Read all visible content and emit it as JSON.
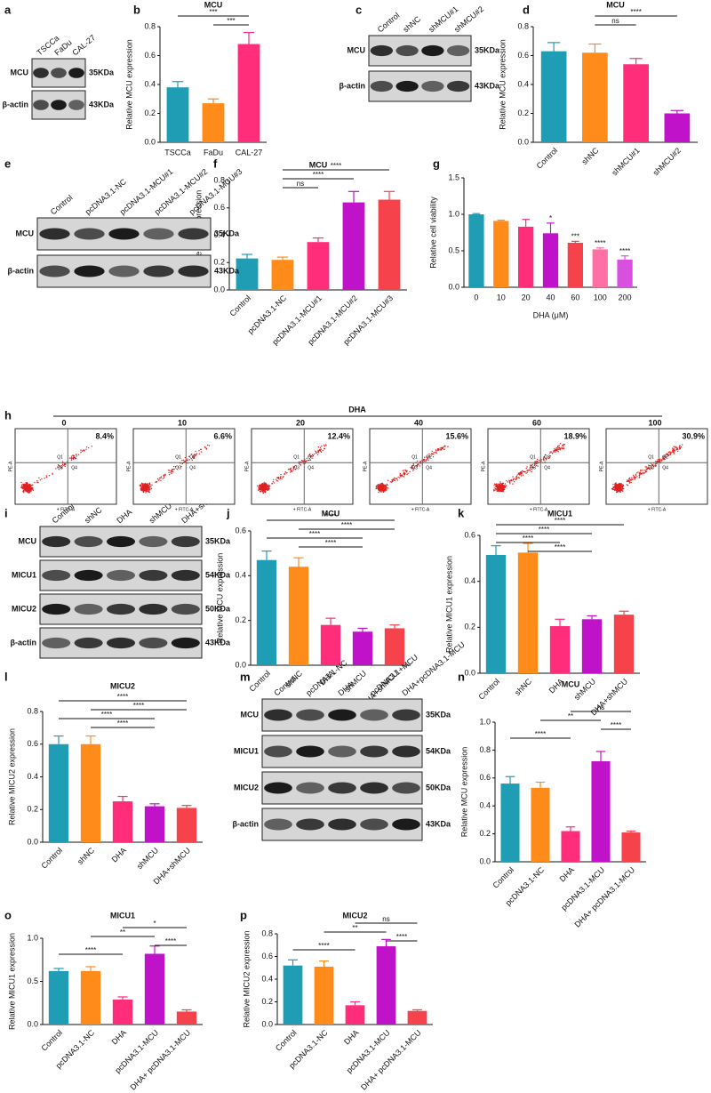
{
  "chart_data": [
    {
      "type": "bar",
      "panel": "b",
      "title": "MCU",
      "y_label": "Relative MCU expression",
      "categories": [
        "TSCCa",
        "FaDu",
        "CAL-27"
      ],
      "values": [
        0.38,
        0.27,
        0.68
      ],
      "errors": [
        0.04,
        0.03,
        0.08
      ],
      "colors": [
        "#1f9db5",
        "#ff8c1a",
        "#ff2d7a"
      ],
      "ylim": [
        0,
        0.8
      ],
      "yticks": [
        {
          "value": 0,
          "label": "0.0"
        },
        0.2,
        0.4,
        0.6,
        0.8
      ],
      "comparisons": [
        {
          "span": [
            0,
            2
          ],
          "label": "***"
        },
        {
          "span": [
            1,
            2
          ],
          "label": "***"
        }
      ]
    },
    {
      "type": "bar",
      "panel": "d",
      "title": "MCU",
      "y_label": "Relative MCU expression",
      "categories": [
        "Control",
        "shNC",
        "shMCU#1",
        "shMCU#2"
      ],
      "values": [
        0.63,
        0.62,
        0.54,
        0.2
      ],
      "errors": [
        0.06,
        0.06,
        0.04,
        0.02
      ],
      "colors": [
        "#1f9db5",
        "#ff8c1a",
        "#ff2d7a",
        "#c012c9"
      ],
      "ylim": [
        0,
        0.8
      ],
      "yticks": [
        {
          "value": 0,
          "label": "0.0"
        },
        0.2,
        0.4,
        0.6,
        0.8
      ],
      "comparisons": [
        {
          "span": [
            1,
            3
          ],
          "label": "****"
        },
        {
          "span": [
            1,
            2
          ],
          "label": "ns"
        }
      ]
    },
    {
      "type": "bar",
      "panel": "f",
      "title": "MCU",
      "y_label": "Relative MCU expression",
      "categories": [
        "Control",
        "pcDNA3.1-NC",
        "pcDNA3.1-MCU#1",
        "pcDNA3.1-MCU#2",
        "pcDNA3.1-MCU#3"
      ],
      "values": [
        0.23,
        0.22,
        0.35,
        0.64,
        0.66
      ],
      "errors": [
        0.03,
        0.02,
        0.03,
        0.08,
        0.06
      ],
      "colors": [
        "#1f9db5",
        "#ff8c1a",
        "#ff2d7a",
        "#c012c9",
        "#f5424b"
      ],
      "ylim": [
        0,
        0.8
      ],
      "yticks": [
        {
          "value": 0,
          "label": "0.0"
        },
        0.2,
        0.4,
        0.6,
        0.8
      ],
      "comparisons": [
        {
          "span": [
            1,
            4
          ],
          "label": "****"
        },
        {
          "span": [
            1,
            3
          ],
          "label": "****"
        },
        {
          "span": [
            1,
            2
          ],
          "label": "ns"
        }
      ]
    },
    {
      "type": "bar",
      "panel": "g",
      "y_label": "Relative cell viability",
      "x_label": "DHA (μM)",
      "categories": [
        "0",
        "10",
        "20",
        "40",
        "60",
        "100",
        "200"
      ],
      "values": [
        1.0,
        0.91,
        0.83,
        0.74,
        0.61,
        0.52,
        0.38
      ],
      "errors": [
        0.01,
        0.01,
        0.1,
        0.14,
        0.02,
        0.02,
        0.05
      ],
      "significance": [
        null,
        null,
        null,
        "*",
        "***",
        "****",
        "****"
      ],
      "colors": [
        "#1f9db5",
        "#ff8c1a",
        "#ff2d7a",
        "#c012c9",
        "#f5424b",
        "#ff6fa3",
        "#d94fe0"
      ],
      "ylim": [
        0,
        1.5
      ],
      "yticks": [
        {
          "value": 0,
          "label": "0.0"
        },
        0.5,
        {
          "value": 1,
          "label": "1.0"
        },
        1.5
      ]
    },
    {
      "type": "bar",
      "panel": "j",
      "title": "MCU",
      "y_label": "Relative MCU expression",
      "categories": [
        "Control",
        "shNC",
        "DHA",
        "shMCU",
        "DHA+shMCU"
      ],
      "values": [
        0.47,
        0.44,
        0.18,
        0.15,
        0.165
      ],
      "errors": [
        0.04,
        0.04,
        0.03,
        0.015,
        0.015
      ],
      "colors": [
        "#1f9db5",
        "#ff8c1a",
        "#ff2d7a",
        "#c012c9",
        "#f5424b"
      ],
      "ylim": [
        0,
        0.6
      ],
      "yticks": [
        {
          "value": 0,
          "label": "0.0"
        },
        0.2,
        0.4,
        0.6
      ],
      "comparisons": [
        {
          "span": [
            0,
            4
          ],
          "label": "****"
        },
        {
          "span": [
            1,
            4
          ],
          "label": "****"
        },
        {
          "span": [
            0,
            3
          ],
          "label": "****"
        },
        {
          "span": [
            1,
            3
          ],
          "label": "****"
        }
      ]
    },
    {
      "type": "bar",
      "panel": "k",
      "title": "MICU1",
      "y_label": "Relative MICU1 expression",
      "categories": [
        "Control",
        "shNC",
        "DHA",
        "shMCU",
        "DHA+shMCU"
      ],
      "values": [
        0.515,
        0.525,
        0.205,
        0.235,
        0.255
      ],
      "errors": [
        0.04,
        0.04,
        0.03,
        0.015,
        0.015
      ],
      "colors": [
        "#1f9db5",
        "#ff8c1a",
        "#ff2d7a",
        "#c012c9",
        "#f5424b"
      ],
      "ylim": [
        0,
        0.6
      ],
      "yticks": [
        {
          "value": 0,
          "label": "0.0"
        },
        0.2,
        0.4,
        0.6
      ],
      "comparisons": [
        {
          "span": [
            0,
            4
          ],
          "label": "****"
        },
        {
          "span": [
            0,
            3
          ],
          "label": "****"
        },
        {
          "span": [
            0,
            2
          ],
          "label": "****"
        },
        {
          "span": [
            1,
            3
          ],
          "label": "****"
        }
      ]
    },
    {
      "type": "bar",
      "panel": "l",
      "title": "MICU2",
      "y_label": "Relative MICU2 expression",
      "categories": [
        "Control",
        "shNC",
        "DHA",
        "shMCU",
        "DHA+shMCU"
      ],
      "values": [
        0.6,
        0.6,
        0.25,
        0.22,
        0.21
      ],
      "errors": [
        0.05,
        0.05,
        0.03,
        0.015,
        0.015
      ],
      "colors": [
        "#1f9db5",
        "#ff8c1a",
        "#ff2d7a",
        "#c012c9",
        "#f5424b"
      ],
      "ylim": [
        0,
        0.8
      ],
      "yticks": [
        {
          "value": 0,
          "label": "0.0"
        },
        0.2,
        0.4,
        0.6,
        0.8
      ],
      "comparisons": [
        {
          "span": [
            0,
            4
          ],
          "label": "****"
        },
        {
          "span": [
            1,
            4
          ],
          "label": "****"
        },
        {
          "span": [
            0,
            3
          ],
          "label": "****"
        },
        {
          "span": [
            1,
            3
          ],
          "label": "****"
        }
      ]
    },
    {
      "type": "bar",
      "panel": "n",
      "title": "MCU",
      "y_label": "Relative MCU expression",
      "categories": [
        "Control",
        "pcDNA3.1-NC",
        "DHA",
        "pcDNA3.1-MCU",
        "DHA+ pcDNA3.1-MCU"
      ],
      "values": [
        0.56,
        0.53,
        0.22,
        0.72,
        0.21
      ],
      "errors": [
        0.05,
        0.04,
        0.03,
        0.07,
        0.01
      ],
      "colors": [
        "#1f9db5",
        "#ff8c1a",
        "#ff2d7a",
        "#c012c9",
        "#f5424b"
      ],
      "ylim": [
        0,
        1.0
      ],
      "yticks": [
        {
          "value": 0,
          "label": "0.0"
        },
        0.2,
        0.4,
        0.6,
        0.8,
        {
          "value": 1,
          "label": "1.0"
        }
      ],
      "comparisons": [
        {
          "span": [
            2,
            4
          ],
          "label": "ns"
        },
        {
          "span": [
            1,
            3
          ],
          "label": "**"
        },
        {
          "span": [
            3,
            4
          ],
          "label": "****"
        },
        {
          "span": [
            0,
            2
          ],
          "label": "****"
        }
      ]
    },
    {
      "type": "bar",
      "panel": "o",
      "title": "MICU1",
      "y_label": "Relative MICU1 expression",
      "categories": [
        "Control",
        "pcDNA3.1-NC",
        "DHA",
        "pcDNA3.1-MCU",
        "DHA+ pcDNA3.1-MCU"
      ],
      "values": [
        0.62,
        0.62,
        0.29,
        0.82,
        0.15
      ],
      "errors": [
        0.03,
        0.05,
        0.03,
        0.09,
        0.02
      ],
      "colors": [
        "#1f9db5",
        "#ff8c1a",
        "#ff2d7a",
        "#c012c9",
        "#f5424b"
      ],
      "ylim": [
        0,
        1.0
      ],
      "yticks": [
        {
          "value": 0,
          "label": "0.0"
        },
        0.5,
        {
          "value": 1,
          "label": "1.0"
        }
      ],
      "comparisons": [
        {
          "span": [
            2,
            4
          ],
          "label": "*"
        },
        {
          "span": [
            1,
            3
          ],
          "label": "**"
        },
        {
          "span": [
            3,
            4
          ],
          "label": "****"
        },
        {
          "span": [
            0,
            2
          ],
          "label": "****"
        }
      ]
    },
    {
      "type": "bar",
      "panel": "p",
      "title": "MICU2",
      "y_label": "Relative MICU2 expression",
      "categories": [
        "Control",
        "pcDNA3.1-NC",
        "DHA",
        "pcDNA3.1-MCU",
        "DHA+ pcDNA3.1-MCU"
      ],
      "values": [
        0.52,
        0.51,
        0.17,
        0.69,
        0.12
      ],
      "errors": [
        0.05,
        0.05,
        0.03,
        0.06,
        0.01
      ],
      "colors": [
        "#1f9db5",
        "#ff8c1a",
        "#ff2d7a",
        "#c012c9",
        "#f5424b"
      ],
      "ylim": [
        0,
        0.8
      ],
      "yticks": [
        {
          "value": 0,
          "label": "0.0"
        },
        0.2,
        0.4,
        0.6,
        0.8
      ],
      "comparisons": [
        {
          "span": [
            2,
            4
          ],
          "label": "ns"
        },
        {
          "span": [
            1,
            3
          ],
          "label": "**"
        },
        {
          "span": [
            3,
            4
          ],
          "label": "****"
        },
        {
          "span": [
            0,
            2
          ],
          "label": "****"
        }
      ]
    }
  ],
  "blots": [
    {
      "panel": "a",
      "lanes": [
        "TSCCa",
        "FaDu",
        "CAL-27"
      ],
      "rows": [
        {
          "protein": "MCU",
          "size": "35KDa"
        },
        {
          "protein": "β-actin",
          "size": "43KDa"
        }
      ]
    },
    {
      "panel": "c",
      "lanes": [
        "Control",
        "shNC",
        "shMCU#1",
        "shMCU#2"
      ],
      "rows": [
        {
          "protein": "MCU",
          "size": "35KDa"
        },
        {
          "protein": "β-actin",
          "size": "43KDa"
        }
      ]
    },
    {
      "panel": "e",
      "lanes": [
        "Control",
        "pcDNA3.1-NC",
        "pcDNA3.1-MCU#1",
        "pcDNA3.1-MCU#2",
        "pcDNA3.1-MCU#3"
      ],
      "rows": [
        {
          "protein": "MCU",
          "size": "35KDa"
        },
        {
          "protein": "β-actin",
          "size": "43KDa"
        }
      ]
    },
    {
      "panel": "i",
      "lanes": [
        "Control",
        "shNC",
        "DHA",
        "shMCU",
        "DHA+shMCU"
      ],
      "rows": [
        {
          "protein": "MCU",
          "size": "35KDa"
        },
        {
          "protein": "MICU1",
          "size": "54KDa"
        },
        {
          "protein": "MICU2",
          "size": "50KDa"
        },
        {
          "protein": "β-actin",
          "size": "43KDa"
        }
      ]
    },
    {
      "panel": "m",
      "lanes": [
        "Control",
        "pcDNA3.1-NC",
        "DHA",
        "pcDNA3.1+MCU",
        "DHA+pcDNA3.1-MCU"
      ],
      "rows": [
        {
          "protein": "MCU",
          "size": "35KDa"
        },
        {
          "protein": "MICU1",
          "size": "54KDa"
        },
        {
          "protein": "MICU2",
          "size": "50KDa"
        },
        {
          "protein": "β-actin",
          "size": "43KDa"
        }
      ]
    }
  ],
  "flow": {
    "panel": "h",
    "treatment": "DHA",
    "y_axis": "PE-A",
    "x_axis": "+ FITC-A",
    "quadrants": [
      "Q1",
      "Q2",
      "Q3",
      "Q4"
    ],
    "plots": [
      {
        "dose": "0",
        "percent": "8.4%"
      },
      {
        "dose": "10",
        "percent": "6.6%"
      },
      {
        "dose": "20",
        "percent": "12.4%"
      },
      {
        "dose": "40",
        "percent": "15.6%"
      },
      {
        "dose": "60",
        "percent": "18.9%"
      },
      {
        "dose": "100",
        "percent": "30.9%"
      }
    ]
  }
}
